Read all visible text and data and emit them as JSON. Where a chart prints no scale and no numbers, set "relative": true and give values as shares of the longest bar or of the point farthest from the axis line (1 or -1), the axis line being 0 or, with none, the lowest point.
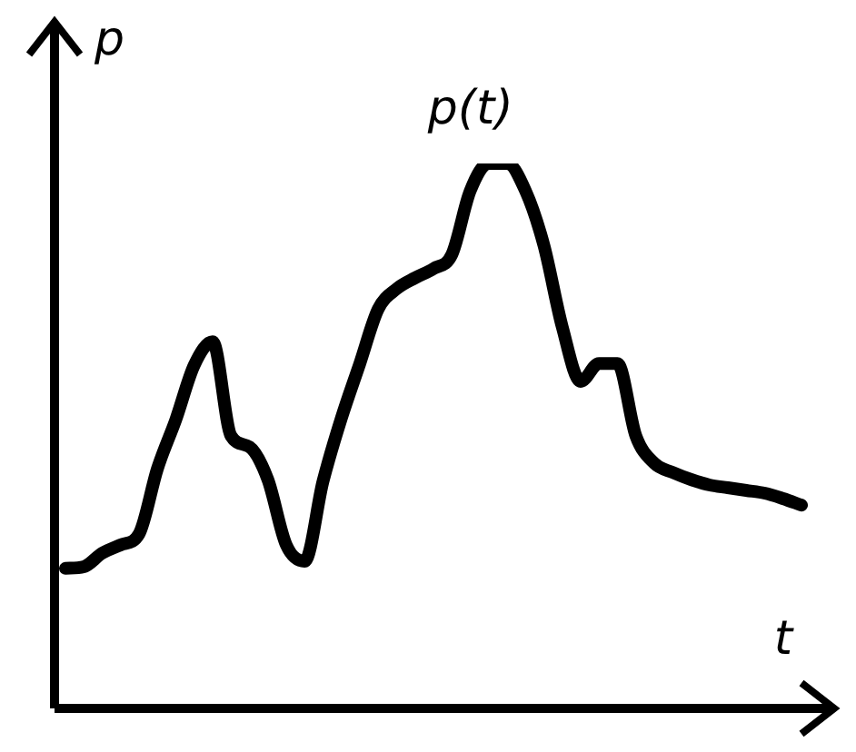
{
  "chart_data": {
    "type": "line",
    "relative": true,
    "xlabel": "t",
    "ylabel": "p",
    "annotations": [
      "p(t)"
    ],
    "categories": [
      null,
      null,
      null,
      null,
      null,
      null,
      null,
      null,
      null,
      null,
      null,
      null,
      null,
      null,
      null,
      null,
      null,
      null,
      null,
      null,
      null,
      null,
      null,
      null,
      null,
      null,
      null,
      null,
      null,
      null,
      null,
      null,
      null,
      null,
      null,
      null,
      null,
      null,
      null,
      null,
      null
    ],
    "series": [
      {
        "color": "#000000",
        "values": [
          0.257,
          0.26,
          0.285,
          0.3,
          0.32,
          0.44,
          0.53,
          0.63,
          0.673,
          0.5,
          0.48,
          0.42,
          0.3,
          0.27,
          0.417,
          0.533,
          0.633,
          0.733,
          0.77,
          0.79,
          0.807,
          0.833,
          0.95,
          1,
          1,
          0.95,
          0.85,
          0.7,
          0.6,
          0.633,
          0.633,
          0.5,
          0.45,
          0.433,
          0.42,
          0.41,
          0.405,
          0.4,
          0.395,
          0.385,
          0.373
        ]
      }
    ],
    "legend": false,
    "marker": "none",
    "line_style": "solid"
  }
}
